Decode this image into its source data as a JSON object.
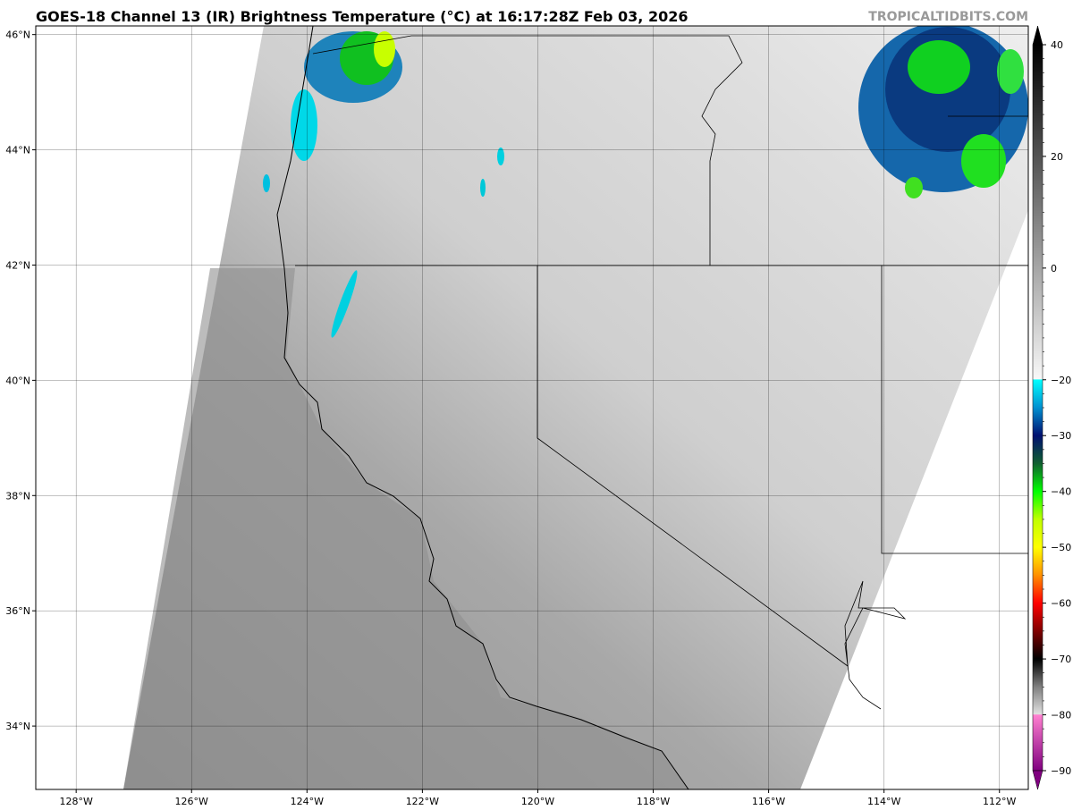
{
  "title": "GOES-18 Channel 13 (IR) Brightness Temperature (°C) at 16:17:28Z Feb 03, 2026",
  "watermark": "TROPICALTIDBITS.COM",
  "map": {
    "projection": "plate-carree",
    "lon_range": [
      -128.7,
      -111.5
    ],
    "lat_range": [
      32.9,
      46.15
    ],
    "lon_ticks": [
      -128,
      -126,
      -124,
      -122,
      -120,
      -118,
      -116,
      -114,
      -112
    ],
    "lon_tick_labels": [
      "128°W",
      "126°W",
      "124°W",
      "122°W",
      "120°W",
      "118°W",
      "116°W",
      "114°W",
      "112°W"
    ],
    "lat_ticks": [
      46,
      44,
      42,
      40,
      38,
      36,
      34
    ],
    "lat_tick_labels": [
      "46°N",
      "44°N",
      "42°N",
      "40°N",
      "38°N",
      "36°N",
      "34°N"
    ],
    "grid": true
  },
  "colorbar": {
    "range": [
      -90,
      40
    ],
    "ticks": [
      40,
      20,
      0,
      -20,
      -30,
      -40,
      -50,
      -60,
      -70,
      -80,
      -90
    ],
    "tick_labels": [
      "40",
      "20",
      "0",
      "−20",
      "−30",
      "−40",
      "−50",
      "−60",
      "−70",
      "−80",
      "−90"
    ],
    "extend": "both",
    "stops": [
      {
        "v": 40,
        "c": "#000000"
      },
      {
        "v": -19.9,
        "c": "#f8f8f8"
      },
      {
        "v": -20,
        "c": "#00ffff"
      },
      {
        "v": -25,
        "c": "#0090d0"
      },
      {
        "v": -30,
        "c": "#001070"
      },
      {
        "v": -35,
        "c": "#106030"
      },
      {
        "v": -40,
        "c": "#00ff00"
      },
      {
        "v": -45,
        "c": "#c0ff00"
      },
      {
        "v": -50,
        "c": "#ffff00"
      },
      {
        "v": -55,
        "c": "#ff9000"
      },
      {
        "v": -60,
        "c": "#ff0000"
      },
      {
        "v": -65,
        "c": "#800000"
      },
      {
        "v": -70,
        "c": "#000000"
      },
      {
        "v": -75,
        "c": "#808080"
      },
      {
        "v": -79.9,
        "c": "#e0e0e0"
      },
      {
        "v": -80,
        "c": "#ff80d0"
      },
      {
        "v": -90,
        "c": "#800080"
      }
    ]
  }
}
